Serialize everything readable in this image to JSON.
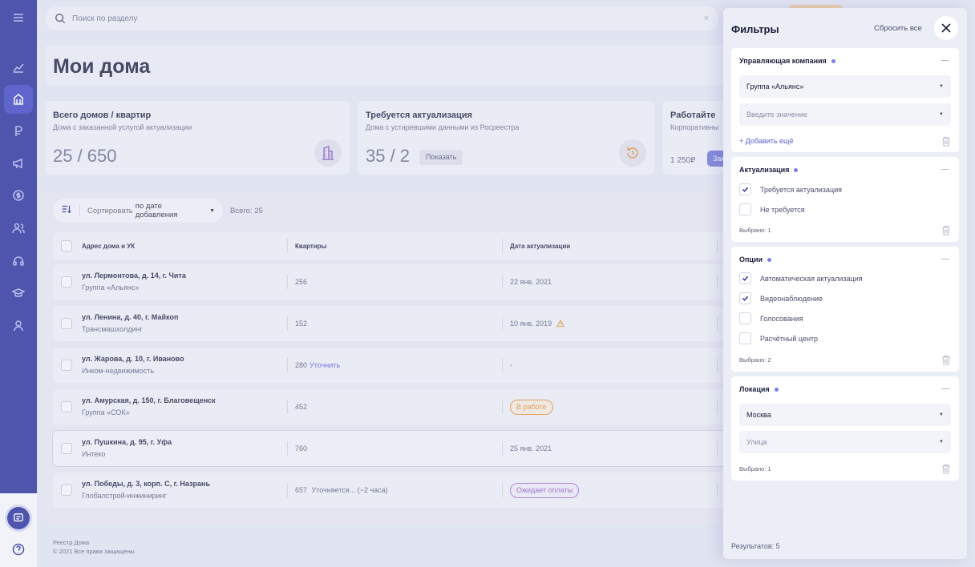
{
  "search": {
    "placeholder": "Поиск по разделу",
    "clear": "×"
  },
  "page": {
    "title": "Мои дома"
  },
  "stats": [
    {
      "title": "Всего домов / квартир",
      "subtitle": "Дома с заказанной услугой актуализации",
      "value": "25 / 650"
    },
    {
      "title": "Требуется актуализация",
      "subtitle": "Дома с устаревшими данными из Росреестра",
      "value": "35 / 2",
      "button": "Показать"
    },
    {
      "title": "Работайте вм",
      "subtitle": "Корпоративный",
      "price": "1 250₽",
      "button": "Зак"
    }
  ],
  "list": {
    "sort_label": "Сортировать",
    "sort_value": "по дате добавления",
    "total": "Всего: 25",
    "columns": [
      "Адрес дома и УК",
      "Квартиры",
      "Дата актуализации"
    ],
    "rows": [
      {
        "address": "ул. Лермонтова, д. 14, г. Чита",
        "org": "Группа «Альянс»",
        "apartments": "256",
        "date": "22 янв. 2021"
      },
      {
        "address": "ул. Ленина, д. 40, г. Майкоп",
        "org": "Трансмашхолдинг",
        "apartments": "152",
        "date": "10 янв. 2019",
        "warning": true
      },
      {
        "address": "ул. Жарова, д. 10, г. Иваново",
        "org": "Инком-недвижимость",
        "apartments": "280",
        "link": "Уточнить",
        "date": "-"
      },
      {
        "address": "ул. Амурская, д. 150, г. Благовещенск",
        "org": "Группа «СОК»",
        "apartments": "452",
        "badge": "В работе"
      },
      {
        "address": "ул. Пушкина, д. 95, г. Уфа",
        "org": "Интеко",
        "apartments": "760",
        "date": "25 янв. 2021"
      },
      {
        "address": "ул. Победы, д. 3, корп. С, г. Назрань",
        "org": "Глобалстрой-инжиниринг",
        "apartments": "657",
        "note": "Уточняется... (~2 часа)",
        "badge": "Ожидает оплаты"
      }
    ]
  },
  "footer": {
    "line1": "Реестр Дома",
    "line2": "© 2021 Все права защищены"
  },
  "filters": {
    "title": "Фильтры",
    "reset": "Сбросить все",
    "company": {
      "title": "Управляющая компания",
      "selected": "Группа «Альянс»",
      "placeholder": "Введите значение",
      "add": "+ Добавить ещё"
    },
    "actualization": {
      "title": "Актуализация",
      "options": [
        {
          "label": "Требуется актуализация",
          "checked": true
        },
        {
          "label": "Не требуется",
          "checked": false
        }
      ],
      "count": "Выбрано: 1"
    },
    "options": {
      "title": "Опции",
      "options": [
        {
          "label": "Автоматическая актуализация",
          "checked": true
        },
        {
          "label": "Видеонаблюдение",
          "checked": true
        },
        {
          "label": "Голосования",
          "checked": false
        },
        {
          "label": "Расчётный центр",
          "checked": false
        }
      ],
      "count": "Выбрано: 2"
    },
    "location": {
      "title": "Локация",
      "city": "Москва",
      "street_placeholder": "Улица",
      "count": "Выбрано: 1"
    },
    "results": "Результатов: 5"
  },
  "colors": {
    "sidebar": "#262b9a",
    "accent": "#5a5fd0",
    "orange": "#e8962f",
    "purple": "#a071d8"
  },
  "icons": {
    "sidebar": [
      "menu-icon",
      "chart-icon",
      "building-icon",
      "ruble-icon",
      "megaphone-icon",
      "dollar-icon",
      "users-icon",
      "headset-icon",
      "graduation-icon",
      "person-icon"
    ],
    "bottom": [
      "chat-icon",
      "help-icon"
    ]
  }
}
